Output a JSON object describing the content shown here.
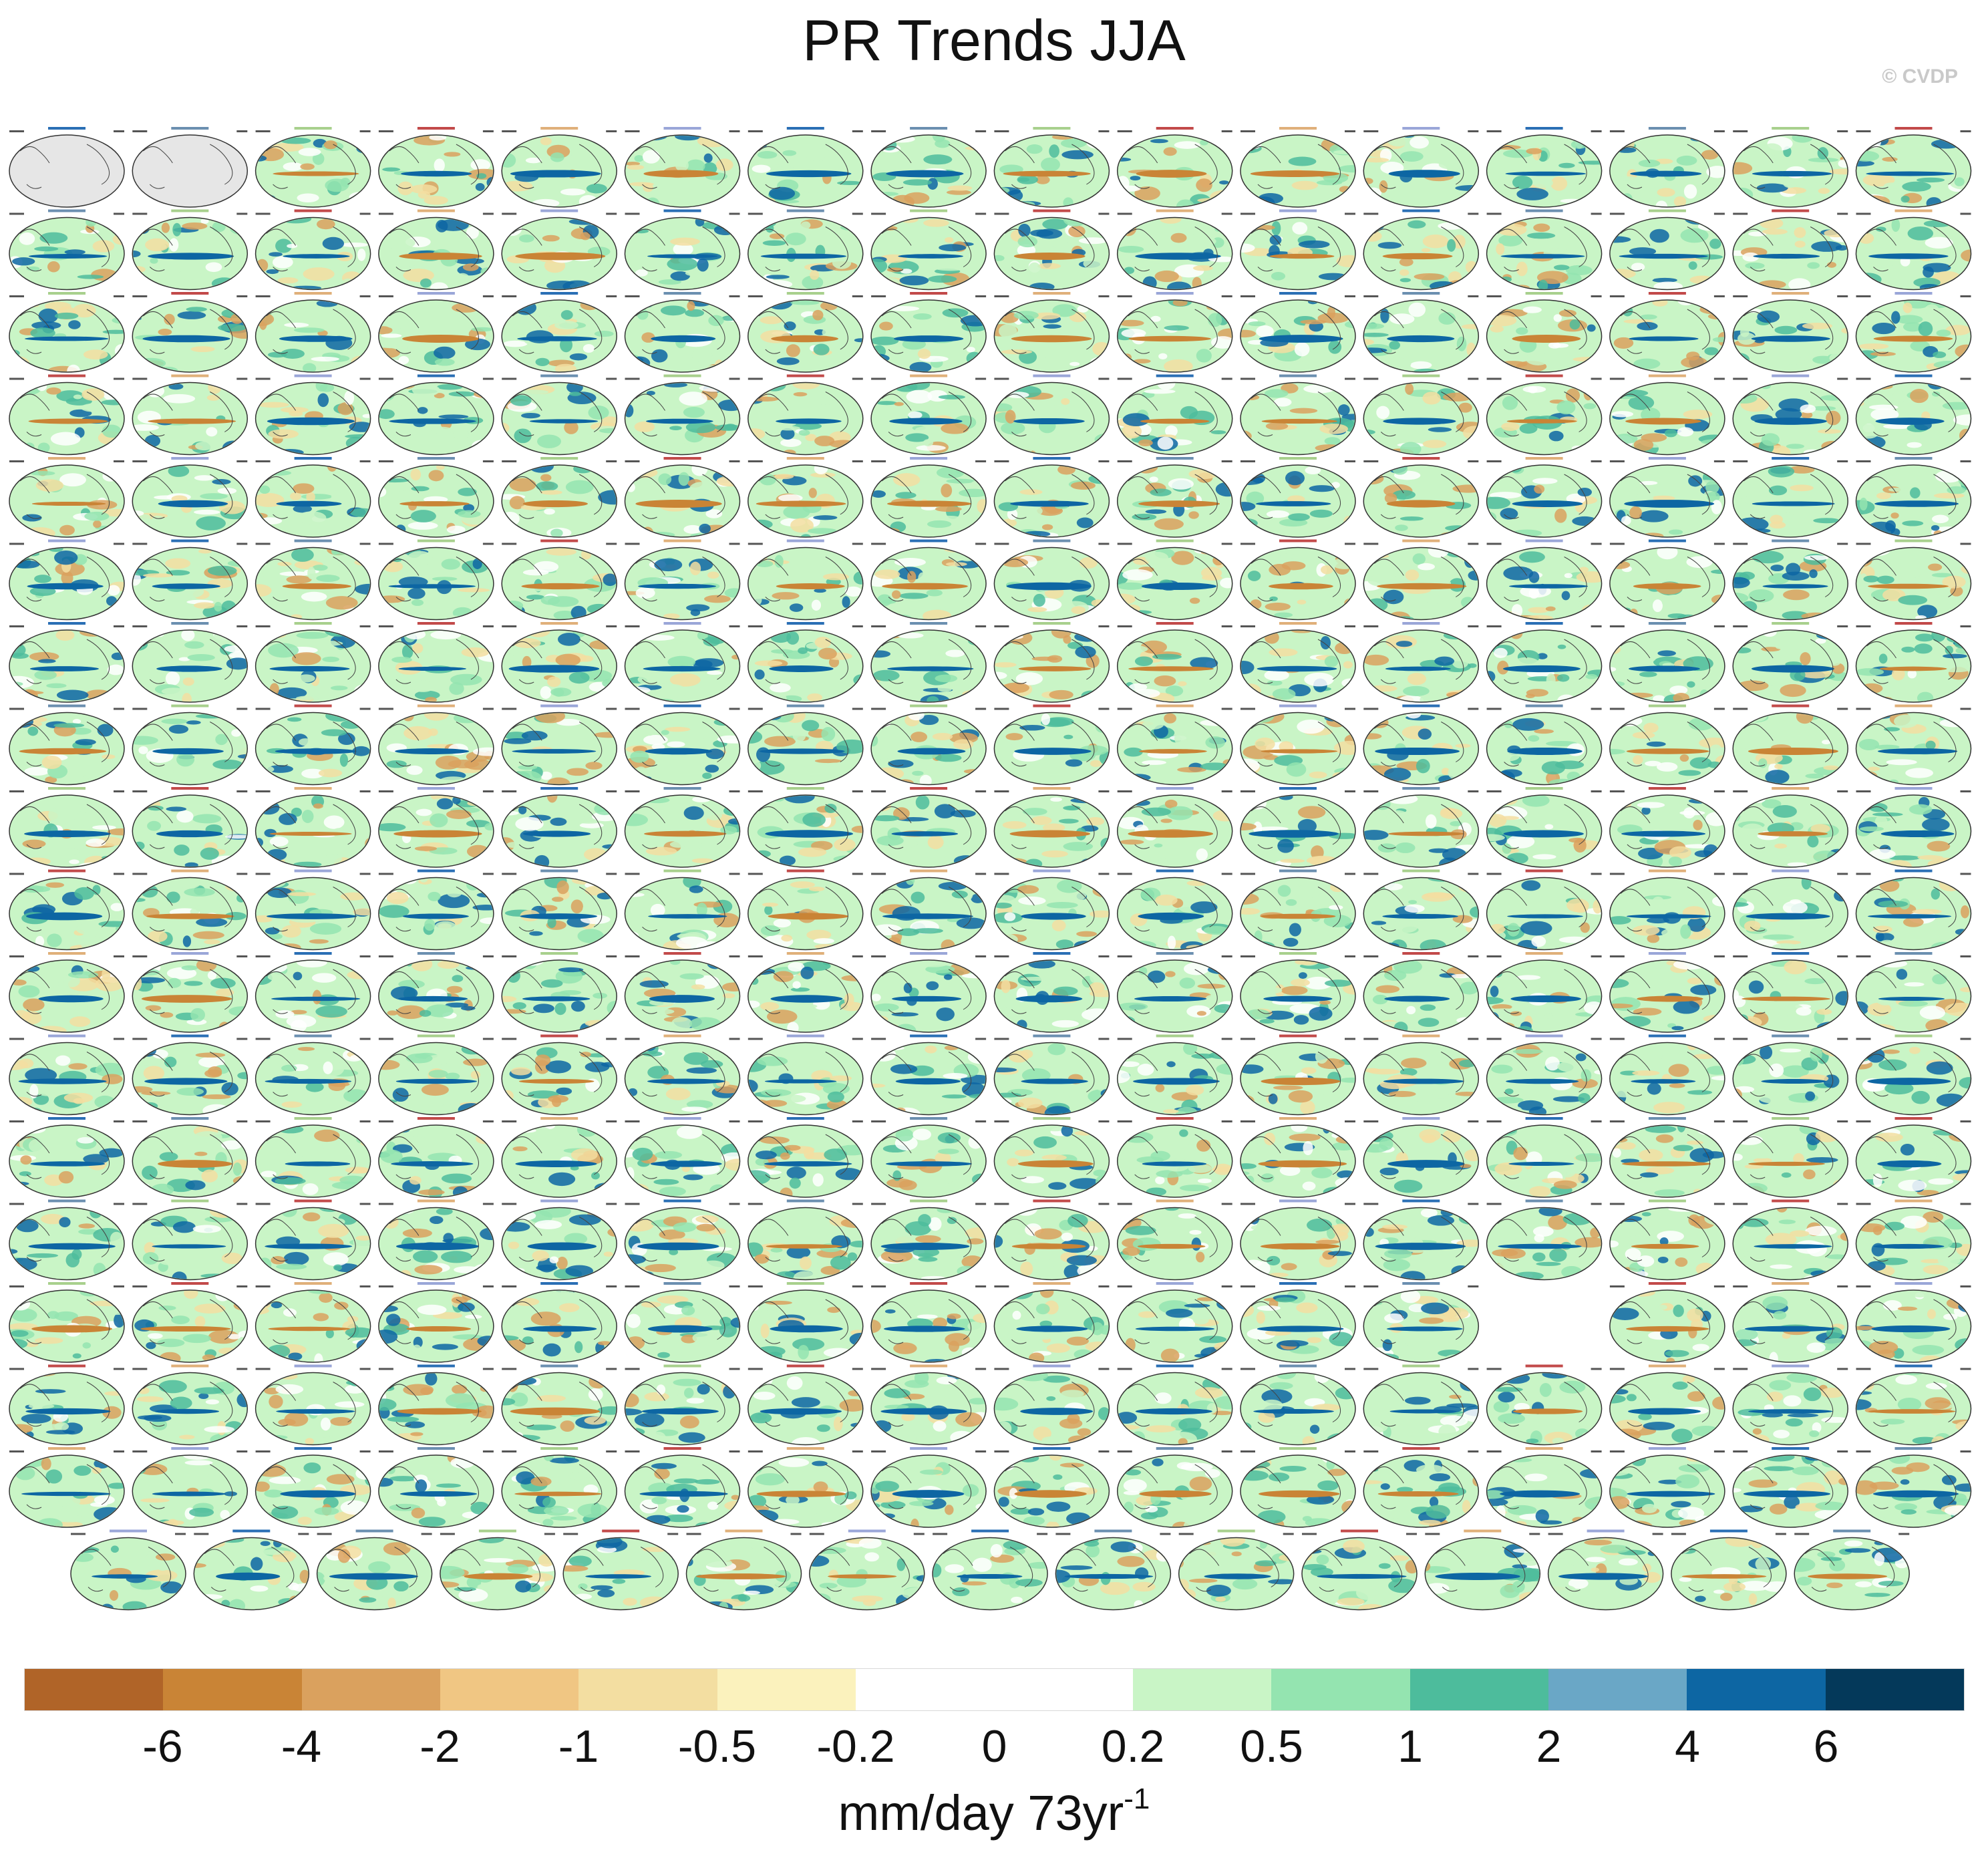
{
  "title": "PR Trends JJA",
  "copyright": "© CVDP",
  "colorbar": {
    "colors": [
      "#b06428",
      "#c98436",
      "#daa15e",
      "#f0c683",
      "#f3dea1",
      "#fbf2bd",
      "#ffffff",
      "#ffffff",
      "#c9f5c6",
      "#94e4b0",
      "#4dbc9c",
      "#6aa7c6",
      "#0d66a3",
      "#04395a"
    ],
    "labels": [
      "-6",
      "-4",
      "-2",
      "-1",
      "-0.5",
      "-0.2",
      "0",
      "0.2",
      "0.5",
      "1",
      "2",
      "4",
      "6"
    ],
    "units_main": "mm/day 73yr",
    "units_sup": "-1"
  },
  "panels": {
    "columns": 16,
    "rows": 18,
    "empty_slots": [
      [
        14,
        12
      ]
    ],
    "last_row_count": 15,
    "ocean_color": "#e6e6e6",
    "map_colors": [
      "#c9f5c6",
      "#94e4b0",
      "#4dbc9c",
      "#0d66a3",
      "#f3dea1",
      "#daa15e",
      "#ffffff"
    ],
    "label_colors": [
      "#2a6fb5",
      "#6b8fb0",
      "#a8d08d",
      "#c24a4a",
      "#e0b07a",
      "#9aa6d8"
    ]
  }
}
